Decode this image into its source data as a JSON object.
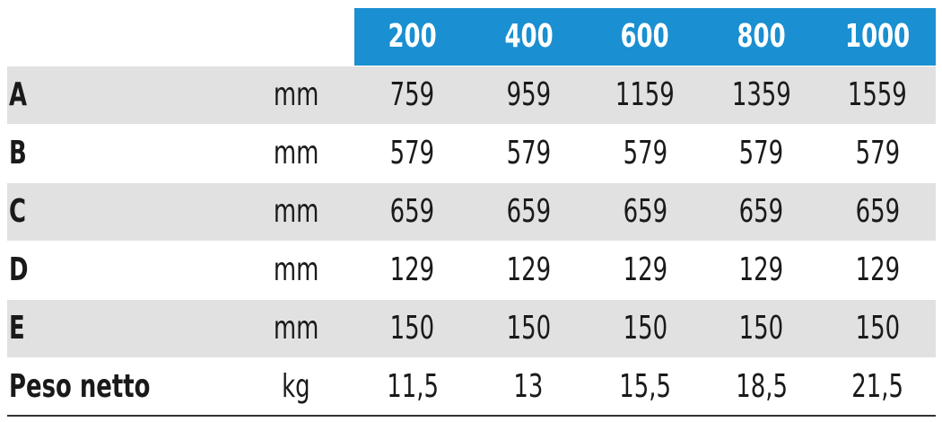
{
  "table": {
    "columns": [
      "200",
      "400",
      "600",
      "800",
      "1000"
    ],
    "rows": [
      {
        "label": "A",
        "unit": "mm",
        "values": [
          "759",
          "959",
          "1159",
          "1359",
          "1559"
        ]
      },
      {
        "label": "B",
        "unit": "mm",
        "values": [
          "579",
          "579",
          "579",
          "579",
          "579"
        ]
      },
      {
        "label": "C",
        "unit": "mm",
        "values": [
          "659",
          "659",
          "659",
          "659",
          "659"
        ]
      },
      {
        "label": "D",
        "unit": "mm",
        "values": [
          "129",
          "129",
          "129",
          "129",
          "129"
        ]
      },
      {
        "label": "E",
        "unit": "mm",
        "values": [
          "150",
          "150",
          "150",
          "150",
          "150"
        ]
      },
      {
        "label": "Peso netto",
        "unit": "kg",
        "values": [
          "11,5",
          "13",
          "15,5",
          "18,5",
          "21,5"
        ]
      }
    ]
  }
}
